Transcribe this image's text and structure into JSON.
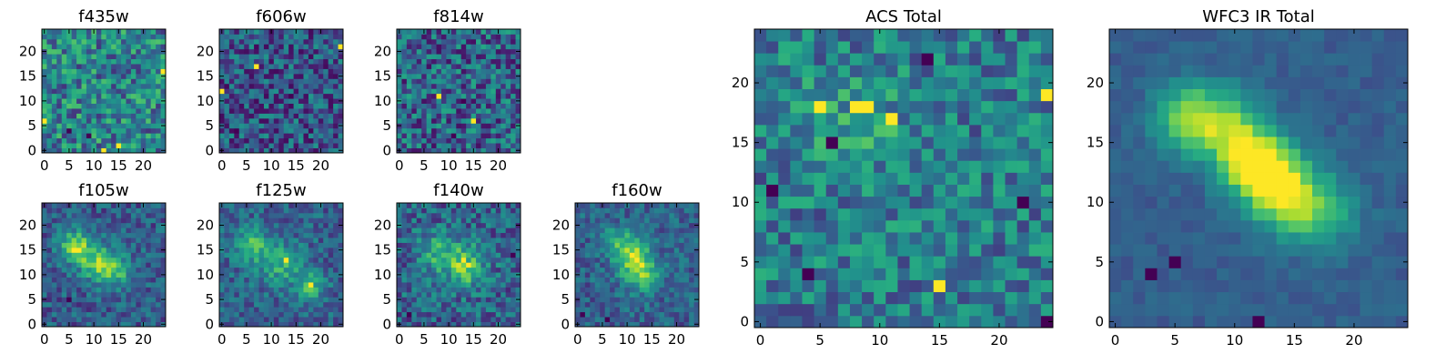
{
  "chart_data": {
    "type": "heatmap",
    "colormap": "viridis",
    "grid_size": 25,
    "panels": [
      {
        "id": "f435w",
        "title": "f435w",
        "xticks": [
          0,
          5,
          10,
          15,
          20
        ],
        "yticks": [
          0,
          5,
          10,
          15,
          20
        ],
        "xlim": [
          -0.5,
          24.5
        ],
        "ylim": [
          -0.5,
          24.5
        ],
        "seed": 11,
        "noise": 0.55,
        "base": 0.45,
        "blobs": [],
        "hot_pixels": [
          [
            24,
            16
          ],
          [
            0,
            6
          ],
          [
            15,
            1
          ],
          [
            12,
            0
          ]
        ],
        "cold_pixels": [
          [
            5,
            4
          ],
          [
            9,
            3
          ]
        ]
      },
      {
        "id": "f606w",
        "title": "f606w",
        "xticks": [
          0,
          5,
          10,
          15,
          20
        ],
        "yticks": [
          0,
          5,
          10,
          15,
          20
        ],
        "xlim": [
          -0.5,
          24.5
        ],
        "ylim": [
          -0.5,
          24.5
        ],
        "seed": 23,
        "noise": 0.5,
        "base": 0.28,
        "blobs": [],
        "hot_pixels": [
          [
            0,
            12
          ],
          [
            24,
            21
          ],
          [
            7,
            17
          ]
        ],
        "cold_pixels": [
          [
            3,
            4
          ],
          [
            14,
            11
          ]
        ]
      },
      {
        "id": "f814w",
        "title": "f814w",
        "xticks": [
          0,
          5,
          10,
          15,
          20
        ],
        "yticks": [
          0,
          5,
          10,
          15,
          20
        ],
        "xlim": [
          -0.5,
          24.5
        ],
        "ylim": [
          -0.5,
          24.5
        ],
        "seed": 37,
        "noise": 0.55,
        "base": 0.33,
        "blobs": [],
        "hot_pixels": [
          [
            15,
            6
          ],
          [
            8,
            11
          ]
        ],
        "cold_pixels": [
          [
            13,
            10
          ],
          [
            11,
            3
          ]
        ]
      },
      {
        "id": "f105w",
        "title": "f105w",
        "xticks": [
          0,
          5,
          10,
          15,
          20
        ],
        "yticks": [
          0,
          5,
          10,
          15,
          20
        ],
        "xlim": [
          -0.5,
          24.5
        ],
        "ylim": [
          -0.5,
          24.5
        ],
        "seed": 41,
        "noise": 0.32,
        "base": 0.3,
        "blobs": [
          [
            6,
            16,
            2,
            0.55
          ],
          [
            10,
            13,
            2.5,
            0.4
          ],
          [
            14,
            11,
            2.5,
            0.4
          ]
        ],
        "hot_pixels": [
          [
            6,
            15
          ]
        ],
        "cold_pixels": [
          [
            5,
            5
          ]
        ]
      },
      {
        "id": "f125w",
        "title": "f125w",
        "xticks": [
          0,
          5,
          10,
          15,
          20
        ],
        "yticks": [
          0,
          5,
          10,
          15,
          20
        ],
        "xlim": [
          -0.5,
          24.5
        ],
        "ylim": [
          -0.5,
          24.5
        ],
        "seed": 53,
        "noise": 0.32,
        "base": 0.32,
        "blobs": [
          [
            6,
            16,
            2.5,
            0.35
          ],
          [
            12,
            12,
            3,
            0.3
          ],
          [
            18,
            8,
            2,
            0.35
          ]
        ],
        "hot_pixels": [
          [
            13,
            13
          ],
          [
            18,
            8
          ]
        ],
        "cold_pixels": []
      },
      {
        "id": "f140w",
        "title": "f140w",
        "xticks": [
          0,
          5,
          10,
          15,
          20
        ],
        "yticks": [
          0,
          5,
          10,
          15,
          20
        ],
        "xlim": [
          -0.5,
          24.5
        ],
        "ylim": [
          -0.5,
          24.5
        ],
        "seed": 67,
        "noise": 0.4,
        "base": 0.33,
        "blobs": [
          [
            13,
            12,
            3,
            0.45
          ],
          [
            7,
            15,
            2.5,
            0.3
          ]
        ],
        "hot_pixels": [
          [
            13,
            13
          ],
          [
            14,
            12
          ]
        ],
        "cold_pixels": [
          [
            2,
            2
          ],
          [
            23,
            14
          ]
        ]
      },
      {
        "id": "f160w",
        "title": "f160w",
        "xticks": [
          0,
          5,
          10,
          15,
          20
        ],
        "yticks": [
          0,
          5,
          10,
          15,
          20
        ],
        "xlim": [
          -0.5,
          24.5
        ],
        "ylim": [
          -0.5,
          24.5
        ],
        "seed": 79,
        "noise": 0.3,
        "base": 0.32,
        "blobs": [
          [
            11,
            14,
            2.5,
            0.45
          ],
          [
            13,
            10,
            2.5,
            0.4
          ],
          [
            8,
            17,
            2,
            0.25
          ]
        ],
        "hot_pixels": [
          [
            11,
            14
          ]
        ],
        "cold_pixels": [
          [
            1,
            2
          ],
          [
            6,
            1
          ]
        ]
      },
      {
        "id": "acs_total",
        "title": "ACS Total",
        "xticks": [
          0,
          5,
          10,
          15,
          20
        ],
        "yticks": [
          0,
          5,
          10,
          15,
          20
        ],
        "xlim": [
          -0.5,
          24.5
        ],
        "ylim": [
          -0.5,
          24.5
        ],
        "seed": 97,
        "noise": 0.45,
        "base": 0.42,
        "blobs": [
          [
            8,
            17,
            3,
            0.15
          ]
        ],
        "hot_pixels": [
          [
            5,
            18
          ],
          [
            8,
            18
          ],
          [
            24,
            19
          ],
          [
            9,
            18
          ],
          [
            11,
            17
          ],
          [
            15,
            3
          ]
        ],
        "cold_pixels": [
          [
            14,
            22
          ],
          [
            6,
            15
          ],
          [
            1,
            11
          ],
          [
            22,
            10
          ],
          [
            24,
            0
          ],
          [
            4,
            4
          ]
        ]
      },
      {
        "id": "wfc3_ir_total",
        "title": "WFC3 IR Total",
        "xticks": [
          0,
          5,
          10,
          15,
          20
        ],
        "yticks": [
          0,
          5,
          10,
          15,
          20
        ],
        "xlim": [
          -0.5,
          24.5
        ],
        "ylim": [
          -0.5,
          24.5
        ],
        "seed": 103,
        "noise": 0.12,
        "base": 0.3,
        "blobs": [
          [
            6,
            17,
            2,
            0.45
          ],
          [
            9,
            17,
            2,
            0.35
          ],
          [
            11,
            14,
            2,
            0.55
          ],
          [
            13,
            12,
            2,
            0.6
          ],
          [
            15,
            10,
            2.2,
            0.4
          ],
          [
            18,
            9,
            2,
            0.25
          ]
        ],
        "hot_pixels": [
          [
            12,
            14
          ],
          [
            13,
            12
          ],
          [
            13,
            11
          ]
        ],
        "cold_pixels": [
          [
            5,
            5
          ],
          [
            3,
            4
          ],
          [
            12,
            0
          ]
        ]
      }
    ]
  }
}
